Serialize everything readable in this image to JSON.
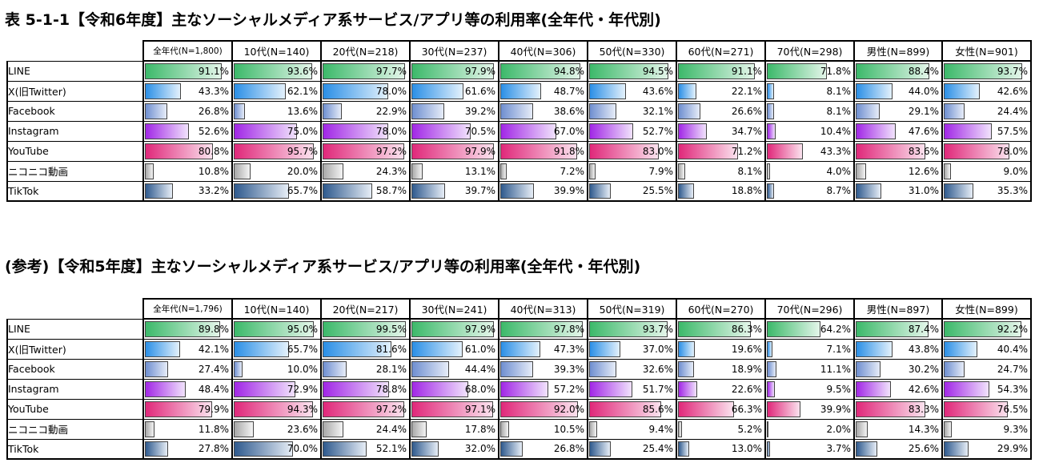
{
  "colors": {
    "LINE": [
      "#3cb96a",
      "#e4f6ea"
    ],
    "X": [
      "#2b8fe6",
      "#e3f1fc"
    ],
    "Facebook": [
      "#6f8fd0",
      "#e6ecf8"
    ],
    "Instagram": [
      "#a127e6",
      "#f1e2fc"
    ],
    "YouTube": [
      "#e0287a",
      "#fbe2ee"
    ],
    "Niconico": [
      "#a8a8a8",
      "#f4f4f4"
    ],
    "TikTok": [
      "#2f5a8e",
      "#e6edf6"
    ]
  },
  "chart_data": [
    {
      "type": "table",
      "title": "表 5-1-1【令和6年度】主なソーシャルメディア系サービス/アプリ等の利用率(全年代・年代別)",
      "columns": [
        "全年代(N=1,800)",
        "10代(N=140)",
        "20代(N=218)",
        "30代(N=237)",
        "40代(N=306)",
        "50代(N=330)",
        "60代(N=271)",
        "70代(N=298)",
        "男性(N=899)",
        "女性(N=901)"
      ],
      "rows": [
        {
          "label": "LINE",
          "key": "LINE",
          "values": [
            "91.1%",
            "93.6%",
            "97.7%",
            "97.9%",
            "94.8%",
            "94.5%",
            "91.1%",
            "71.8%",
            "88.4%",
            "93.7%"
          ]
        },
        {
          "label": "X(旧Twitter)",
          "key": "X",
          "values": [
            "43.3%",
            "62.1%",
            "78.0%",
            "61.6%",
            "48.7%",
            "43.6%",
            "22.1%",
            "8.1%",
            "44.0%",
            "42.6%"
          ]
        },
        {
          "label": "Facebook",
          "key": "Facebook",
          "values": [
            "26.8%",
            "13.6%",
            "22.9%",
            "39.2%",
            "38.6%",
            "32.1%",
            "26.6%",
            "8.1%",
            "29.1%",
            "24.4%"
          ]
        },
        {
          "label": "Instagram",
          "key": "Instagram",
          "values": [
            "52.6%",
            "75.0%",
            "78.0%",
            "70.5%",
            "67.0%",
            "52.7%",
            "34.7%",
            "10.4%",
            "47.6%",
            "57.5%"
          ]
        },
        {
          "label": "YouTube",
          "key": "YouTube",
          "values": [
            "80.8%",
            "95.7%",
            "97.2%",
            "97.9%",
            "91.8%",
            "83.0%",
            "71.2%",
            "43.3%",
            "83.6%",
            "78.0%"
          ]
        },
        {
          "label": "ニコニコ動画",
          "key": "Niconico",
          "values": [
            "10.8%",
            "20.0%",
            "24.3%",
            "13.1%",
            "7.2%",
            "7.9%",
            "8.1%",
            "4.0%",
            "12.6%",
            "9.0%"
          ]
        },
        {
          "label": "TikTok",
          "key": "TikTok",
          "values": [
            "33.2%",
            "65.7%",
            "58.7%",
            "39.7%",
            "39.9%",
            "25.5%",
            "18.8%",
            "8.7%",
            "31.0%",
            "35.3%"
          ]
        }
      ]
    },
    {
      "type": "table",
      "title": "(参考)【令和5年度】主なソーシャルメディア系サービス/アプリ等の利用率(全年代・年代別)",
      "columns": [
        "全年代(N=1,796)",
        "10代(N=140)",
        "20代(N=217)",
        "30代(N=241)",
        "40代(N=313)",
        "50代(N=319)",
        "60代(N=270)",
        "70代(N=296)",
        "男性(N=897)",
        "女性(N=899)"
      ],
      "rows": [
        {
          "label": "LINE",
          "key": "LINE",
          "values": [
            "89.8%",
            "95.0%",
            "99.5%",
            "97.9%",
            "97.8%",
            "93.7%",
            "86.3%",
            "64.2%",
            "87.4%",
            "92.2%"
          ]
        },
        {
          "label": "X(旧Twitter)",
          "key": "X",
          "values": [
            "42.1%",
            "65.7%",
            "81.6%",
            "61.0%",
            "47.3%",
            "37.0%",
            "19.6%",
            "7.1%",
            "43.8%",
            "40.4%"
          ]
        },
        {
          "label": "Facebook",
          "key": "Facebook",
          "values": [
            "27.4%",
            "10.0%",
            "28.1%",
            "44.4%",
            "39.3%",
            "32.6%",
            "18.9%",
            "11.1%",
            "30.2%",
            "24.7%"
          ]
        },
        {
          "label": "Instagram",
          "key": "Instagram",
          "values": [
            "48.4%",
            "72.9%",
            "78.8%",
            "68.0%",
            "57.2%",
            "51.7%",
            "22.6%",
            "9.5%",
            "42.6%",
            "54.3%"
          ]
        },
        {
          "label": "YouTube",
          "key": "YouTube",
          "values": [
            "79.9%",
            "94.3%",
            "97.2%",
            "97.1%",
            "92.0%",
            "85.6%",
            "66.3%",
            "39.9%",
            "83.3%",
            "76.5%"
          ]
        },
        {
          "label": "ニコニコ動画",
          "key": "Niconico",
          "values": [
            "11.8%",
            "23.6%",
            "24.4%",
            "17.8%",
            "10.5%",
            "9.4%",
            "5.2%",
            "2.0%",
            "14.3%",
            "9.3%"
          ]
        },
        {
          "label": "TikTok",
          "key": "TikTok",
          "values": [
            "27.8%",
            "70.0%",
            "52.1%",
            "32.0%",
            "26.8%",
            "25.4%",
            "13.0%",
            "3.7%",
            "25.6%",
            "29.9%"
          ]
        }
      ]
    }
  ]
}
